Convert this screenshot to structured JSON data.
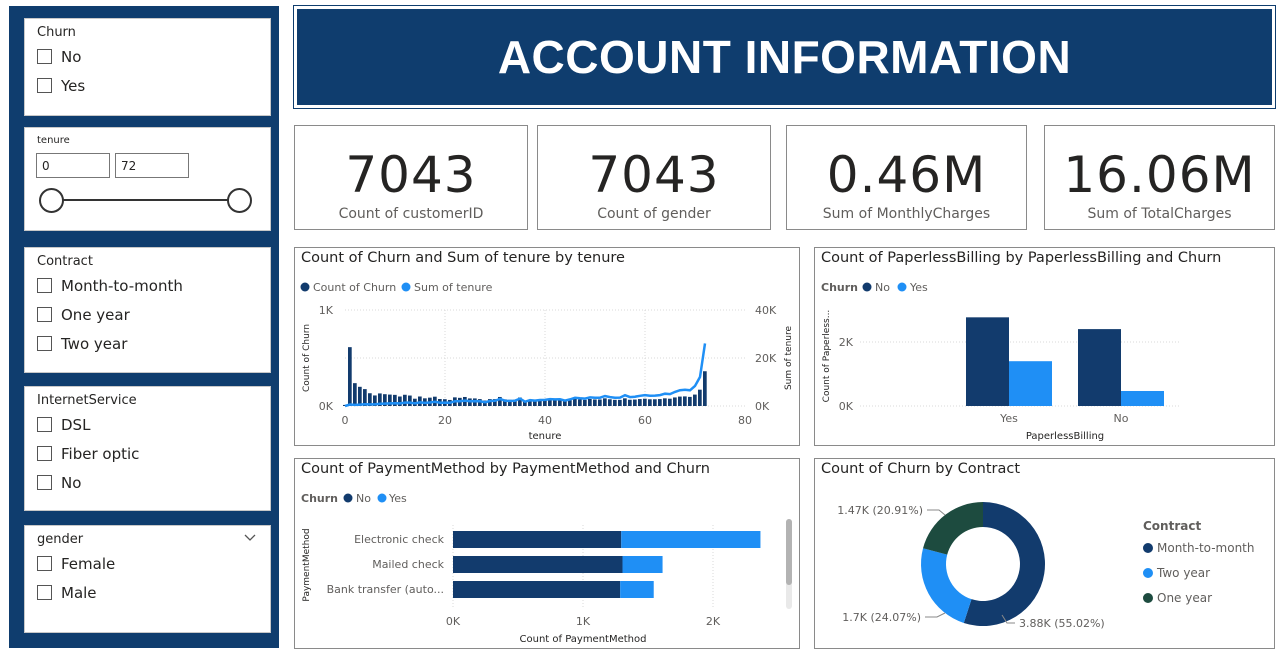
{
  "header": {
    "title": "ACCOUNT INFORMATION"
  },
  "colors": {
    "navy": "#0f3d6e",
    "dark_series": "#123b6d",
    "light_series": "#1f8ff5",
    "teal": "#1d4b3f"
  },
  "slicers": {
    "churn": {
      "title": "Churn",
      "options": [
        "No",
        "Yes"
      ]
    },
    "tenure": {
      "title": "tenure",
      "min": "0",
      "max": "72"
    },
    "contract": {
      "title": "Contract",
      "options": [
        "Month-to-month",
        "One year",
        "Two year"
      ]
    },
    "internet": {
      "title": "InternetService",
      "options": [
        "DSL",
        "Fiber optic",
        "No"
      ]
    },
    "gender": {
      "title": "gender",
      "options": [
        "Female",
        "Male"
      ],
      "chevron_icon": "chevron-down-icon"
    }
  },
  "cards": [
    {
      "value": "7043",
      "label": "Count of customerID"
    },
    {
      "value": "7043",
      "label": "Count of gender"
    },
    {
      "value": "0.46M",
      "label": "Sum of MonthlyCharges"
    },
    {
      "value": "16.06M",
      "label": "Sum of TotalCharges"
    }
  ],
  "chart_data": [
    {
      "type": "bar",
      "title": "Count of Churn and Sum of tenure by tenure",
      "legend": [
        "Count of Churn",
        "Sum of tenure"
      ],
      "xlabel": "tenure",
      "ylabel": "Count of Churn",
      "y2label": "Sum of tenure",
      "xticks": [
        "0",
        "20",
        "40",
        "60",
        "80"
      ],
      "yticks": [
        "0K",
        "1K"
      ],
      "y2ticks": [
        "0K",
        "20K",
        "40K"
      ],
      "ylim": [
        0,
        1000
      ],
      "y2lim": [
        0,
        40000
      ],
      "x": [
        0,
        1,
        2,
        3,
        4,
        5,
        6,
        7,
        8,
        9,
        10,
        11,
        12,
        13,
        14,
        15,
        16,
        17,
        18,
        19,
        20,
        21,
        22,
        23,
        24,
        25,
        26,
        27,
        28,
        29,
        30,
        31,
        32,
        33,
        34,
        35,
        36,
        37,
        38,
        39,
        40,
        41,
        42,
        43,
        44,
        45,
        46,
        47,
        48,
        49,
        50,
        51,
        52,
        53,
        54,
        55,
        56,
        57,
        58,
        59,
        60,
        61,
        62,
        63,
        64,
        65,
        66,
        67,
        68,
        69,
        70,
        71,
        72
      ],
      "churn_counts": [
        11,
        613,
        238,
        200,
        176,
        133,
        110,
        131,
        123,
        119,
        116,
        99,
        117,
        109,
        76,
        99,
        80,
        87,
        97,
        73,
        71,
        63,
        90,
        85,
        94,
        79,
        79,
        72,
        57,
        72,
        72,
        94,
        69,
        64,
        65,
        88,
        50,
        65,
        59,
        64,
        64,
        70,
        65,
        65,
        51,
        61,
        74,
        68,
        64,
        73,
        68,
        68,
        80,
        70,
        64,
        64,
        80,
        65,
        67,
        72,
        76,
        70,
        70,
        72,
        80,
        76,
        89,
        98,
        100,
        95,
        119,
        170,
        362
      ],
      "tenure_sum": [
        0,
        613,
        476,
        600,
        704,
        665,
        660,
        917,
        984,
        1071,
        1160,
        1089,
        1404,
        1417,
        1064,
        1485,
        1280,
        1479,
        1746,
        1387,
        1420,
        1323,
        1980,
        1955,
        2256,
        1975,
        2054,
        1944,
        1596,
        2088,
        2160,
        2914,
        2208,
        2112,
        2210,
        3080,
        1800,
        2405,
        2242,
        2496,
        2560,
        2870,
        2730,
        2795,
        2244,
        2745,
        3404,
        3196,
        3072,
        3577,
        3400,
        3468,
        4160,
        3710,
        3456,
        3520,
        4480,
        3705,
        3886,
        4248,
        4560,
        4270,
        4340,
        4536,
        5120,
        4940,
        5874,
        6566,
        6800,
        6555,
        8330,
        12070,
        26064
      ]
    },
    {
      "type": "bar",
      "title": "Count of PaperlessBilling by PaperlessBilling and Churn",
      "legend_title": "Churn",
      "legend": [
        "No",
        "Yes"
      ],
      "categories": [
        "Yes",
        "No"
      ],
      "series": [
        {
          "name": "No",
          "values": [
            2771,
            2403
          ]
        },
        {
          "name": "Yes",
          "values": [
            1400,
            469
          ]
        }
      ],
      "xlabel": "PaperlessBilling",
      "ylabel": "Count of Paperless...",
      "yticks": [
        "0K",
        "2K"
      ],
      "ylim": [
        0,
        3000
      ]
    },
    {
      "type": "bar",
      "orientation": "horizontal",
      "title": "Count of PaymentMethod by PaymentMethod and Churn",
      "legend_title": "Churn",
      "legend": [
        "No",
        "Yes"
      ],
      "categories": [
        "Electronic check",
        "Mailed check",
        "Bank transfer (auto..."
      ],
      "series": [
        {
          "name": "No",
          "values": [
            1294,
            1304,
            1286
          ]
        },
        {
          "name": "Yes",
          "values": [
            1071,
            308,
            258
          ]
        }
      ],
      "xlabel": "Count of PaymentMethod",
      "ylabel": "PaymentMethod",
      "xticks": [
        "0K",
        "1K",
        "2K"
      ],
      "xlim": [
        0,
        2000
      ]
    },
    {
      "type": "pie",
      "title": "Count of Churn by Contract",
      "legend_title": "Contract",
      "labels": [
        "Month-to-month",
        "Two year",
        "One year"
      ],
      "values": [
        3875,
        1695,
        1473
      ],
      "data_labels": [
        "3.88K (55.02%)",
        "1.7K (24.07%)",
        "1.47K (20.91%)"
      ]
    }
  ]
}
